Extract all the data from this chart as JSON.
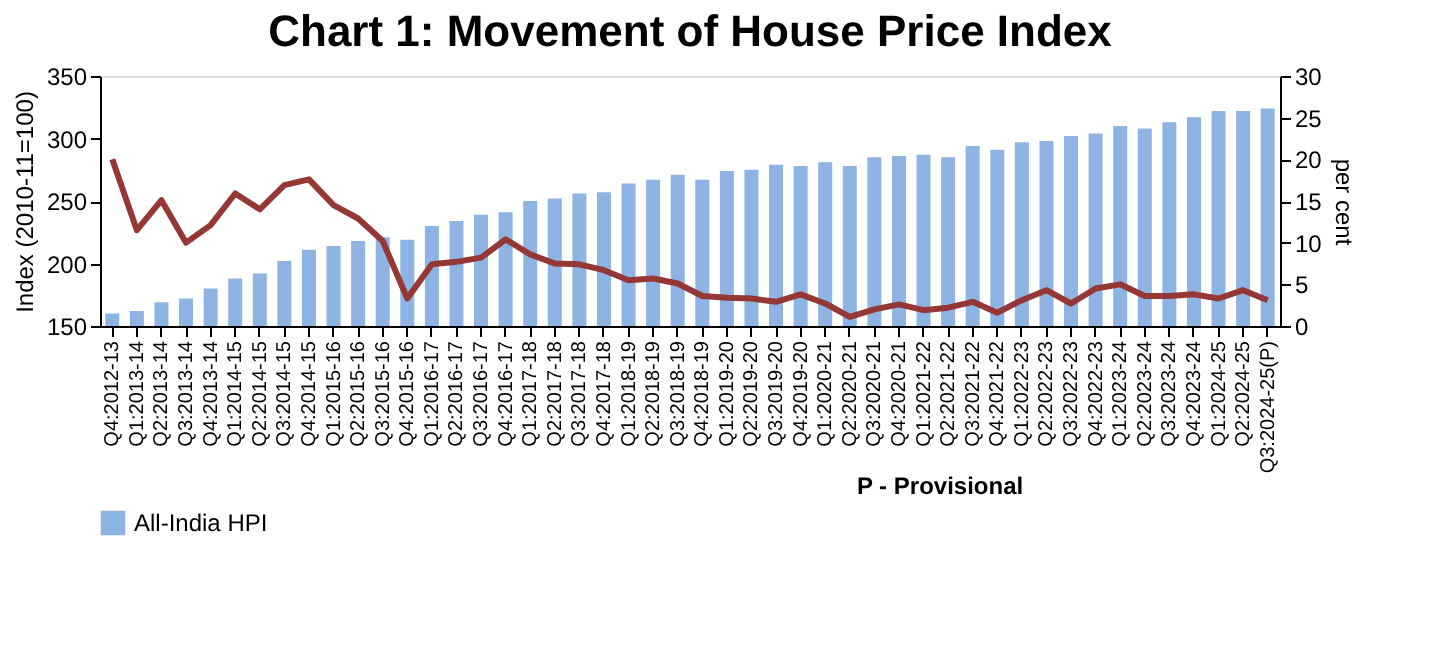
{
  "chart_data": {
    "type": "bar",
    "title": "Chart 1: Movement of House Price Index",
    "categories": [
      "Q4:2012-13",
      "Q1:2013-14",
      "Q2:2013-14",
      "Q3:2013-14",
      "Q4:2013-14",
      "Q1:2014-15",
      "Q2:2014-15",
      "Q3:2014-15",
      "Q4:2014-15",
      "Q1:2015-16",
      "Q2:2015-16",
      "Q3:2015-16",
      "Q4:2015-16",
      "Q1:2016-17",
      "Q2:2016-17",
      "Q3:2016-17",
      "Q4:2016-17",
      "Q1:2017-18",
      "Q2:2017-18",
      "Q3:2017-18",
      "Q4:2017-18",
      "Q1:2018-19",
      "Q2:2018-19",
      "Q3:2018-19",
      "Q4:2018-19",
      "Q1:2019-20",
      "Q2:2019-20",
      "Q3:2019-20",
      "Q4:2019-20",
      "Q1:2020-21",
      "Q2:2020-21",
      "Q3:2020-21",
      "Q4:2020-21",
      "Q1:2021-22",
      "Q2:2021-22",
      "Q3:2021-22",
      "Q4:2021-22",
      "Q1:2022-23",
      "Q2:2022-23",
      "Q3:2022-23",
      "Q4:2022-23",
      "Q1:2023-24",
      "Q2:2023-24",
      "Q3:2023-24",
      "Q4:2023-24",
      "Q1:2024-25",
      "Q2:2024-25",
      "Q3:2024-25(P)"
    ],
    "series": [
      {
        "name": "All-India HPI",
        "color": "#8db4e2",
        "values": [
          160,
          162,
          169,
          172,
          180,
          188,
          192,
          202,
          211,
          214,
          218,
          221,
          219,
          230,
          234,
          239,
          241,
          250,
          252,
          256,
          257,
          264,
          267,
          271,
          267,
          274,
          275,
          279,
          278,
          281,
          278,
          285,
          286,
          287,
          285,
          294,
          291,
          297,
          298,
          302,
          304,
          310,
          308,
          313,
          317,
          322,
          322,
          324
        ]
      },
      {
        "type": "line",
        "axis": "y2",
        "color": "#953735",
        "values": [
          20.0,
          11.5,
          15.1,
          10.0,
          12.1,
          15.9,
          14.0,
          16.9,
          17.6,
          14.5,
          12.9,
          10.2,
          3.3,
          7.4,
          7.7,
          8.2,
          10.4,
          8.6,
          7.5,
          7.4,
          6.7,
          5.5,
          5.7,
          5.1,
          3.6,
          3.4,
          3.3,
          2.9,
          3.8,
          2.7,
          1.1,
          2.0,
          2.6,
          1.9,
          2.2,
          2.9,
          1.6,
          3.1,
          4.3,
          2.7,
          4.5,
          5.0,
          3.6,
          3.6,
          3.8,
          3.3,
          4.3,
          3.1
        ]
      }
    ],
    "ylabel": "Index (2010-11=100)",
    "y2label": "per cent",
    "ylim": [
      150,
      350
    ],
    "yticks": [
      150,
      200,
      250,
      300,
      350
    ],
    "y2lim": [
      0,
      30
    ],
    "y2ticks": [
      0,
      5,
      10,
      15,
      20,
      25,
      30
    ],
    "grid": false,
    "legend": "bottom",
    "annotations": [
      "P - Provisional"
    ]
  }
}
